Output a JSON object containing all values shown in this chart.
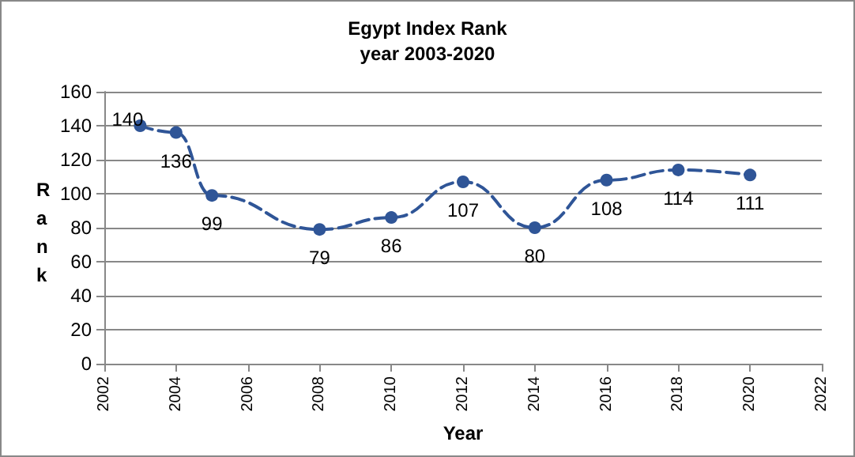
{
  "chart_data": {
    "type": "line",
    "title": "Egypt Index Rank",
    "subtitle": "year 2003-2020",
    "xlabel": "Year",
    "ylabel": "Rank",
    "x": [
      2003,
      2004,
      2005,
      2008,
      2010,
      2012,
      2014,
      2016,
      2018,
      2020
    ],
    "series": [
      {
        "color": "#2f5597",
        "values": [
          140,
          136,
          99,
          79,
          86,
          107,
          80,
          108,
          114,
          111
        ]
      }
    ],
    "xlim": [
      2002,
      2022
    ],
    "xticks": [
      2002,
      2004,
      2006,
      2008,
      2010,
      2012,
      2014,
      2016,
      2018,
      2020,
      2022
    ],
    "ylim": [
      0,
      160
    ],
    "yticks": [
      0,
      20,
      40,
      60,
      80,
      100,
      120,
      140,
      160
    ],
    "grid": "y",
    "marker": "circle",
    "line_style": "dashed",
    "data_labels": true
  }
}
